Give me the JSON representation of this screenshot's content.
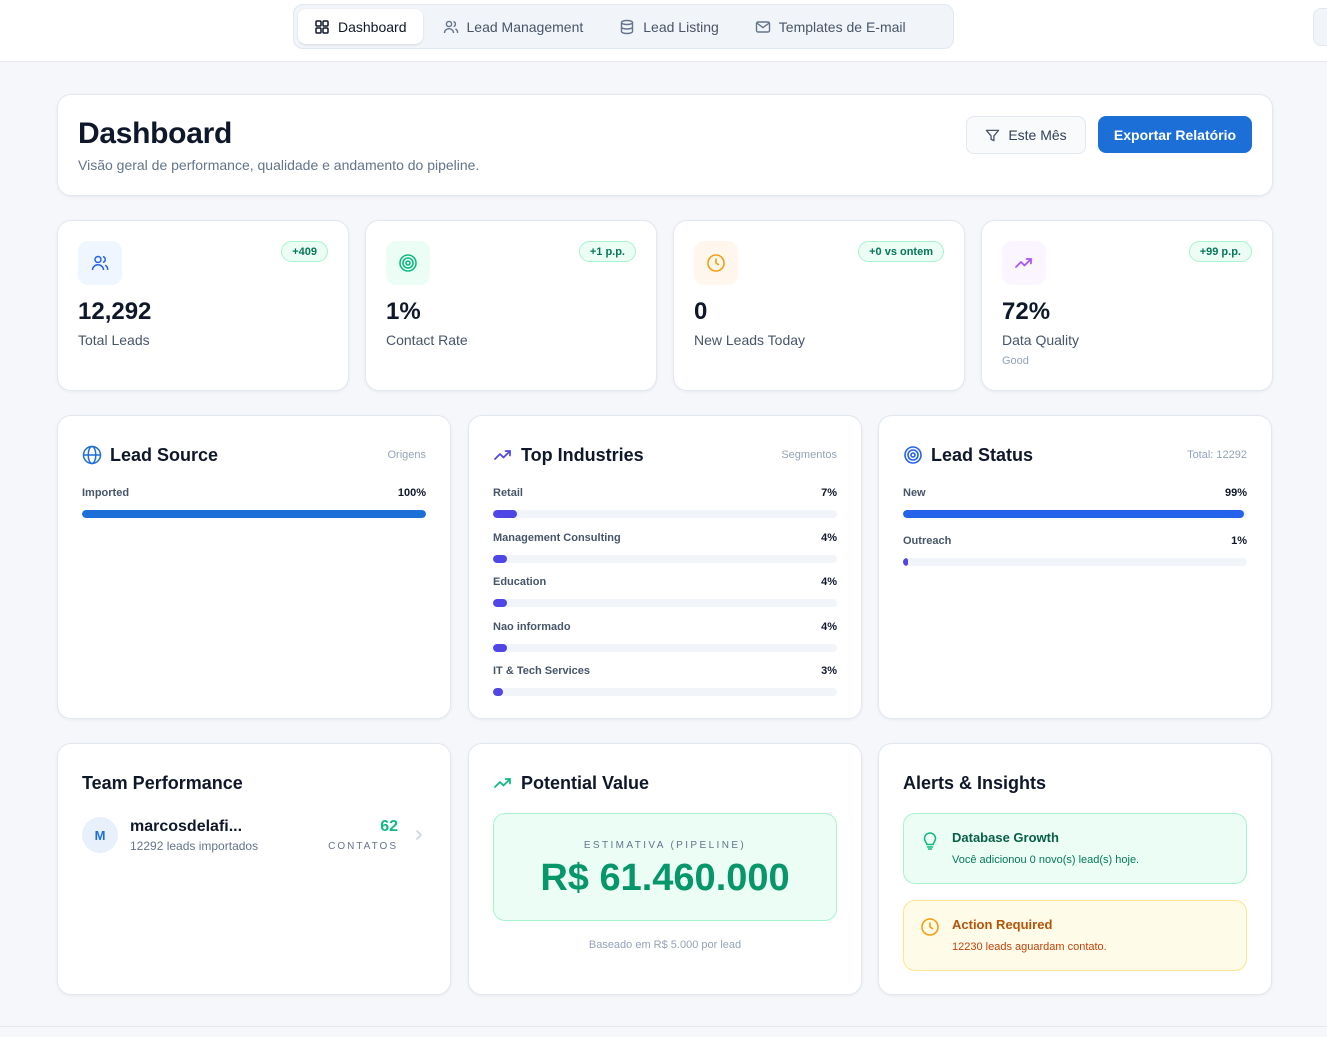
{
  "nav": {
    "items": [
      {
        "label": "Dashboard",
        "icon": "grid-icon",
        "active": true
      },
      {
        "label": "Lead Management",
        "icon": "users-icon"
      },
      {
        "label": "Lead Listing",
        "icon": "database-icon"
      },
      {
        "label": "Templates de E-mail",
        "icon": "mail-icon"
      }
    ]
  },
  "header": {
    "title": "Dashboard",
    "subtitle": "Visão geral de performance, qualidade e andamento do pipeline.",
    "filter_label": "Este Mês",
    "export_label": "Exportar Relatório"
  },
  "kpis": [
    {
      "value": "12,292",
      "label": "Total Leads",
      "badge": "+409",
      "icon": "users-icon",
      "color": "#2563eb",
      "bg": "#eff6ff"
    },
    {
      "value": "1%",
      "label": "Contact Rate",
      "badge": "+1 p.p.",
      "icon": "target-icon",
      "color": "#10b981",
      "bg": "#ecfdf5"
    },
    {
      "value": "0",
      "label": "New Leads Today",
      "badge": "+0 vs ontem",
      "icon": "clock-icon",
      "color": "#f59e0b",
      "bg": "#fff7ed"
    },
    {
      "value": "72%",
      "label": "Data Quality",
      "badge": "+99 p.p.",
      "sub": "Good",
      "icon": "trending-up-icon",
      "color": "#a855f7",
      "bg": "#faf5ff"
    }
  ],
  "lead_source": {
    "title": "Lead Source",
    "note": "Origens",
    "icon": "globe-icon",
    "color": "#1d6fd8",
    "items": [
      {
        "name": "Imported",
        "pct": "100%",
        "value": 100
      }
    ]
  },
  "top_industries": {
    "title": "Top Industries",
    "note": "Segmentos",
    "icon": "trending-up-icon",
    "color": "#4f46e5",
    "items": [
      {
        "name": "Retail",
        "pct": "7%",
        "value": 7
      },
      {
        "name": "Management Consulting",
        "pct": "4%",
        "value": 4
      },
      {
        "name": "Education",
        "pct": "4%",
        "value": 4
      },
      {
        "name": "Nao informado",
        "pct": "4%",
        "value": 4
      },
      {
        "name": "IT & Tech Services",
        "pct": "3%",
        "value": 3
      }
    ]
  },
  "lead_status": {
    "title": "Lead Status",
    "note": "Total: 12292",
    "icon": "target-icon",
    "colors": [
      "#2563eb",
      "#4f46e5"
    ],
    "items": [
      {
        "name": "New",
        "pct": "99%",
        "value": 99
      },
      {
        "name": "Outreach",
        "pct": "1%",
        "value": 1
      }
    ]
  },
  "team": {
    "title": "Team Performance",
    "members": [
      {
        "initial": "M",
        "name": "marcosdelafi...",
        "sub": "12292 leads importados",
        "count": "62",
        "count_label": "CONTATOS"
      }
    ]
  },
  "potential": {
    "title": "Potential Value",
    "icon": "trending-up-icon",
    "caption": "ESTIMATIVA (PIPELINE)",
    "value": "R$ 61.460.000",
    "footnote": "Baseado em R$ 5.000 por lead"
  },
  "alerts": {
    "title": "Alerts & Insights",
    "items": [
      {
        "title": "Database Growth",
        "text": "Você adicionou 0 novo(s) lead(s) hoje.",
        "icon": "lightbulb-icon",
        "tone": "green"
      },
      {
        "title": "Action Required",
        "text": "12230 leads aguardam contato.",
        "icon": "clock-icon",
        "tone": "yellow"
      }
    ]
  }
}
